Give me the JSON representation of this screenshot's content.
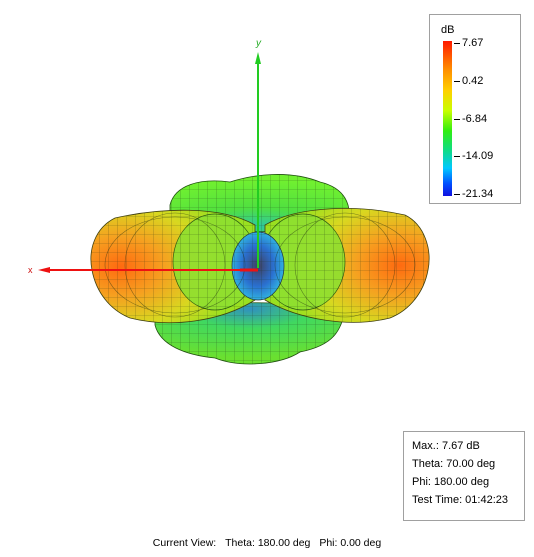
{
  "axes": {
    "x_label": "x",
    "y_label": "y",
    "x_color": "#ee1111",
    "y_color": "#22cc22"
  },
  "legend": {
    "unit": "dB",
    "values": [
      "7.67",
      "0.42",
      "-6.84",
      "-14.09",
      "-21.34"
    ],
    "colors": [
      "#ff1a00",
      "#ffd000",
      "#30ee10",
      "#00c8ff",
      "#1010e0"
    ]
  },
  "info": {
    "max": "Max.: 7.67 dB",
    "theta": "Theta: 70.00 deg",
    "phi": "Phi: 180.00 deg",
    "test_time": "Test Time: 01:42:23"
  },
  "current_view": {
    "label": "Current View:",
    "theta": "Theta: 180.00 deg",
    "phi": "Phi: 0.00 deg"
  }
}
